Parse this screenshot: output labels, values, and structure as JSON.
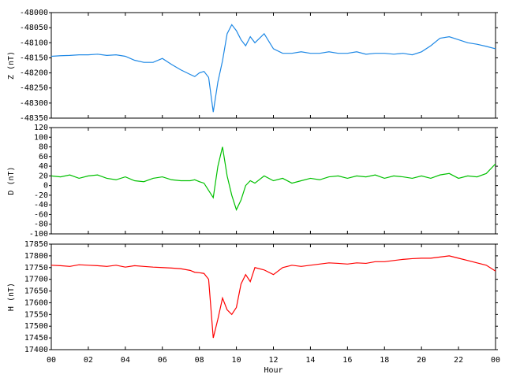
{
  "chart_data": [
    {
      "type": "line",
      "ylabel": "Z (nT)",
      "color": "#1e88e5",
      "ylim": [
        -48350,
        -48000
      ],
      "yticks": [
        -48350,
        -48300,
        -48250,
        -48200,
        -48150,
        -48100,
        -48050,
        -48000
      ],
      "xlim": [
        0,
        24
      ],
      "x": [
        0,
        0.5,
        1,
        1.5,
        2,
        2.5,
        3,
        3.5,
        4,
        4.5,
        5,
        5.5,
        6,
        6.5,
        7,
        7.5,
        7.75,
        8,
        8.25,
        8.5,
        8.75,
        9,
        9.25,
        9.5,
        9.75,
        10,
        10.25,
        10.5,
        10.75,
        11,
        11.5,
        12,
        12.5,
        13,
        13.5,
        14,
        14.5,
        15,
        15.5,
        16,
        16.5,
        17,
        17.5,
        18,
        18.5,
        19,
        19.5,
        20,
        20.5,
        21,
        21.5,
        22,
        22.5,
        23,
        23.5,
        24
      ],
      "values": [
        -48145,
        -48143,
        -48142,
        -48140,
        -48140,
        -48138,
        -48142,
        -48140,
        -48145,
        -48158,
        -48165,
        -48165,
        -48152,
        -48172,
        -48190,
        -48205,
        -48212,
        -48200,
        -48195,
        -48215,
        -48330,
        -48230,
        -48160,
        -48070,
        -48040,
        -48060,
        -48090,
        -48110,
        -48080,
        -48100,
        -48070,
        -48120,
        -48135,
        -48135,
        -48130,
        -48135,
        -48135,
        -48130,
        -48135,
        -48135,
        -48130,
        -48138,
        -48135,
        -48135,
        -48138,
        -48135,
        -48140,
        -48130,
        -48110,
        -48085,
        -48080,
        -48090,
        -48100,
        -48105,
        -48112,
        -48120
      ]
    },
    {
      "type": "line",
      "ylabel": "D (nT)",
      "color": "#00c000",
      "ylim": [
        -100,
        120
      ],
      "yticks": [
        -100,
        -80,
        -60,
        -40,
        -20,
        0,
        20,
        40,
        60,
        80,
        100,
        120
      ],
      "xlim": [
        0,
        24
      ],
      "x": [
        0,
        0.5,
        1,
        1.5,
        2,
        2.5,
        3,
        3.5,
        4,
        4.5,
        5,
        5.5,
        6,
        6.5,
        7,
        7.5,
        7.75,
        8,
        8.25,
        8.5,
        8.75,
        9,
        9.25,
        9.5,
        9.75,
        10,
        10.25,
        10.5,
        10.75,
        11,
        11.5,
        12,
        12.5,
        13,
        13.5,
        14,
        14.5,
        15,
        15.5,
        16,
        16.5,
        17,
        17.5,
        18,
        18.5,
        19,
        19.5,
        20,
        20.5,
        21,
        21.5,
        22,
        22.5,
        23,
        23.5,
        24
      ],
      "values": [
        20,
        18,
        22,
        15,
        20,
        22,
        15,
        12,
        18,
        10,
        8,
        15,
        18,
        12,
        10,
        10,
        12,
        8,
        5,
        -10,
        -25,
        40,
        80,
        20,
        -20,
        -50,
        -30,
        0,
        10,
        5,
        20,
        10,
        15,
        5,
        10,
        15,
        12,
        18,
        20,
        15,
        20,
        18,
        22,
        15,
        20,
        18,
        15,
        20,
        15,
        22,
        25,
        15,
        20,
        18,
        25,
        45
      ]
    },
    {
      "type": "line",
      "ylabel": "H (nT)",
      "color": "#ff0000",
      "xlabel": "Hour",
      "ylim": [
        17400,
        17850
      ],
      "yticks": [
        17400,
        17450,
        17500,
        17550,
        17600,
        17650,
        17700,
        17750,
        17800,
        17850
      ],
      "xlim": [
        0,
        24
      ],
      "xticks": [
        {
          "value": 0,
          "label": "00"
        },
        {
          "value": 2,
          "label": "02"
        },
        {
          "value": 4,
          "label": "04"
        },
        {
          "value": 6,
          "label": "06"
        },
        {
          "value": 8,
          "label": "08"
        },
        10,
        12,
        14,
        16,
        18,
        20,
        22,
        {
          "value": 24,
          "label": "00"
        }
      ],
      "x": [
        0,
        0.5,
        1,
        1.5,
        2,
        2.5,
        3,
        3.5,
        4,
        4.5,
        5,
        5.5,
        6,
        6.5,
        7,
        7.5,
        7.75,
        8,
        8.25,
        8.5,
        8.75,
        9,
        9.25,
        9.5,
        9.75,
        10,
        10.25,
        10.5,
        10.75,
        11,
        11.5,
        12,
        12.5,
        13,
        13.5,
        14,
        14.5,
        15,
        15.5,
        16,
        16.5,
        17,
        17.5,
        18,
        18.5,
        19,
        19.5,
        20,
        20.5,
        21,
        21.5,
        22,
        22.5,
        23,
        23.5,
        24
      ],
      "values": [
        17760,
        17758,
        17755,
        17762,
        17760,
        17758,
        17755,
        17760,
        17752,
        17758,
        17755,
        17752,
        17750,
        17748,
        17745,
        17738,
        17730,
        17728,
        17725,
        17700,
        17450,
        17530,
        17620,
        17570,
        17550,
        17580,
        17680,
        17720,
        17690,
        17750,
        17740,
        17720,
        17750,
        17760,
        17755,
        17760,
        17765,
        17770,
        17768,
        17765,
        17770,
        17768,
        17775,
        17775,
        17780,
        17785,
        17788,
        17790,
        17790,
        17795,
        17800,
        17790,
        17780,
        17770,
        17760,
        17735
      ]
    }
  ]
}
